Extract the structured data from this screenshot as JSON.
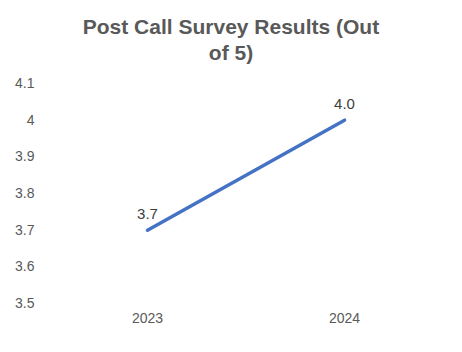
{
  "chart_data": {
    "type": "line",
    "title": "Post Call Survey Results (Out of 5)",
    "categories": [
      "2023",
      "2024"
    ],
    "values": [
      3.7,
      4.0
    ],
    "value_labels": [
      "3.7",
      "4.0"
    ],
    "color": "#4472c4",
    "ylim": [
      3.5,
      4.1
    ],
    "yticks": [
      3.5,
      3.6,
      3.7,
      3.8,
      3.9,
      4,
      4.1
    ],
    "grid": false,
    "data_labels": true
  }
}
